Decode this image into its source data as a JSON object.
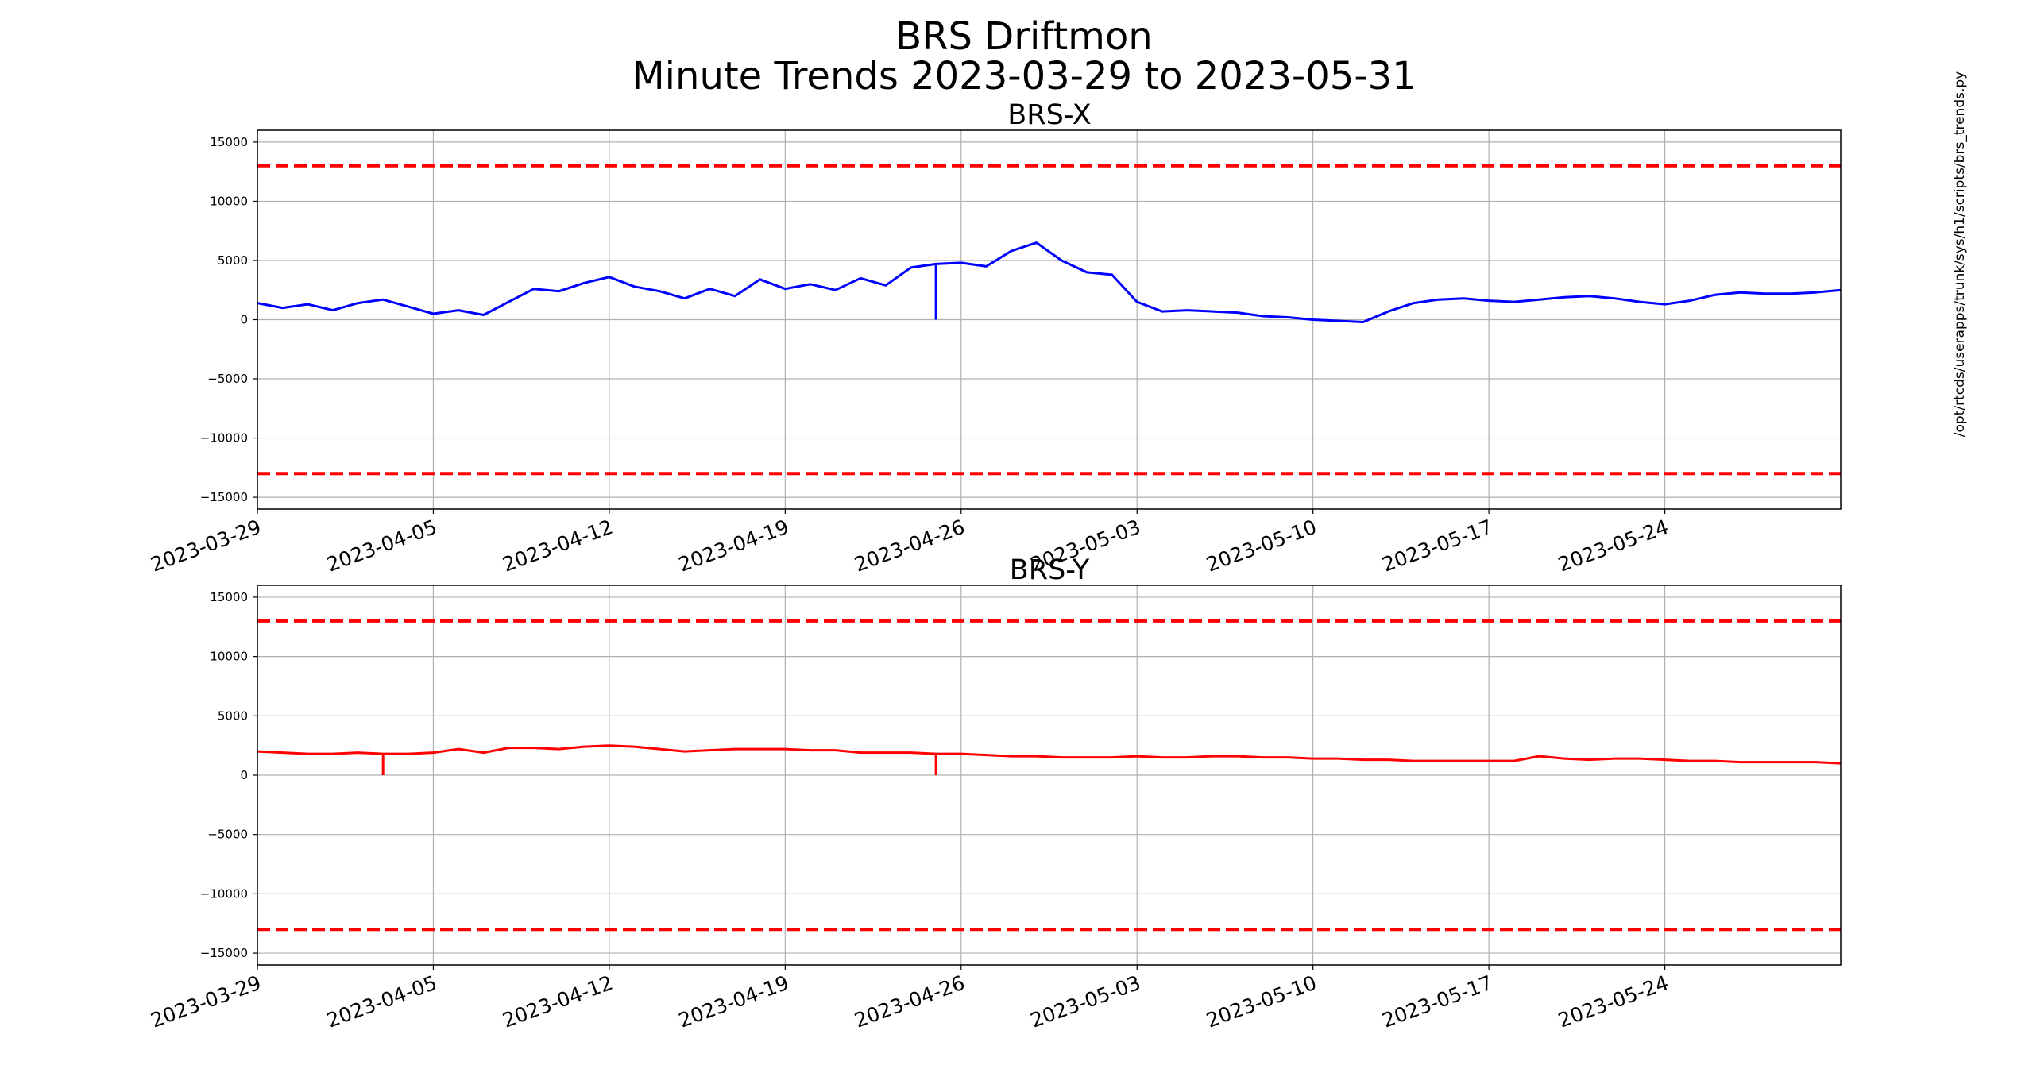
{
  "figure": {
    "title_lines": [
      "BRS Driftmon",
      "Minute Trends 2023-03-29  to 2023-05-31"
    ],
    "side_text": "/opt/rtcds/userapps/trunk/sys/h1/scripts/brs_trends.py"
  },
  "chart_data": [
    {
      "type": "line",
      "title": "BRS-X",
      "xlabel": "",
      "ylabel": "",
      "xlim": [
        "2023-03-29",
        "2023-05-31"
      ],
      "ylim": [
        -16000,
        16000
      ],
      "grid": true,
      "xticks": [
        "2023-03-29",
        "2023-04-05",
        "2023-04-12",
        "2023-04-19",
        "2023-04-26",
        "2023-05-03",
        "2023-05-10",
        "2023-05-17",
        "2023-05-24"
      ],
      "yticks": [
        -15000,
        -10000,
        -5000,
        0,
        5000,
        10000,
        15000
      ],
      "limit_lines": [
        {
          "y": 13000,
          "color": "#ff0000",
          "style": "dashed"
        },
        {
          "y": -13000,
          "color": "#ff0000",
          "style": "dashed"
        }
      ],
      "series": [
        {
          "color": "#0000ff",
          "x": [
            "2023-03-29",
            "2023-03-30",
            "2023-03-31",
            "2023-04-01",
            "2023-04-02",
            "2023-04-03",
            "2023-04-04",
            "2023-04-05",
            "2023-04-06",
            "2023-04-07",
            "2023-04-08",
            "2023-04-09",
            "2023-04-10",
            "2023-04-11",
            "2023-04-12",
            "2023-04-13",
            "2023-04-14",
            "2023-04-15",
            "2023-04-16",
            "2023-04-17",
            "2023-04-18",
            "2023-04-19",
            "2023-04-20",
            "2023-04-21",
            "2023-04-22",
            "2023-04-23",
            "2023-04-24",
            "2023-04-25",
            "2023-04-26",
            "2023-04-27",
            "2023-04-28",
            "2023-04-29",
            "2023-04-30",
            "2023-05-01",
            "2023-05-02",
            "2023-05-03",
            "2023-05-04",
            "2023-05-05",
            "2023-05-06",
            "2023-05-07",
            "2023-05-08",
            "2023-05-09",
            "2023-05-10",
            "2023-05-11",
            "2023-05-12",
            "2023-05-13",
            "2023-05-14",
            "2023-05-15",
            "2023-05-16",
            "2023-05-17",
            "2023-05-18",
            "2023-05-19",
            "2023-05-20",
            "2023-05-21",
            "2023-05-22",
            "2023-05-23",
            "2023-05-24",
            "2023-05-25",
            "2023-05-26",
            "2023-05-27",
            "2023-05-28",
            "2023-05-29",
            "2023-05-30",
            "2023-05-31"
          ],
          "values": [
            1400,
            1000,
            1300,
            800,
            1400,
            1700,
            1100,
            500,
            800,
            400,
            1500,
            2600,
            2400,
            3100,
            3600,
            2800,
            2400,
            1800,
            2600,
            2000,
            3400,
            2600,
            3000,
            2500,
            3500,
            2900,
            4400,
            4700,
            4800,
            4500,
            5800,
            6500,
            5000,
            4000,
            3800,
            1500,
            700,
            800,
            700,
            600,
            300,
            200,
            0,
            -100,
            -200,
            700,
            1400,
            1700,
            1800,
            1600,
            1500,
            1700,
            1900,
            2000,
            1800,
            1500,
            1300,
            1600,
            2100,
            2300,
            2200,
            2200,
            2300,
            2500
          ],
          "spikes": [
            {
              "x": "2023-04-25",
              "y": 0
            }
          ]
        }
      ]
    },
    {
      "type": "line",
      "title": "BRS-Y",
      "xlabel": "",
      "ylabel": "",
      "xlim": [
        "2023-03-29",
        "2023-05-31"
      ],
      "ylim": [
        -16000,
        16000
      ],
      "grid": true,
      "xticks": [
        "2023-03-29",
        "2023-04-05",
        "2023-04-12",
        "2023-04-19",
        "2023-04-26",
        "2023-05-03",
        "2023-05-10",
        "2023-05-17",
        "2023-05-24"
      ],
      "yticks": [
        -15000,
        -10000,
        -5000,
        0,
        5000,
        10000,
        15000
      ],
      "limit_lines": [
        {
          "y": 13000,
          "color": "#ff0000",
          "style": "dashed"
        },
        {
          "y": -13000,
          "color": "#ff0000",
          "style": "dashed"
        }
      ],
      "series": [
        {
          "color": "#ff0000",
          "x": [
            "2023-03-29",
            "2023-03-30",
            "2023-03-31",
            "2023-04-01",
            "2023-04-02",
            "2023-04-03",
            "2023-04-04",
            "2023-04-05",
            "2023-04-06",
            "2023-04-07",
            "2023-04-08",
            "2023-04-09",
            "2023-04-10",
            "2023-04-11",
            "2023-04-12",
            "2023-04-13",
            "2023-04-14",
            "2023-04-15",
            "2023-04-16",
            "2023-04-17",
            "2023-04-18",
            "2023-04-19",
            "2023-04-20",
            "2023-04-21",
            "2023-04-22",
            "2023-04-23",
            "2023-04-24",
            "2023-04-25",
            "2023-04-26",
            "2023-04-27",
            "2023-04-28",
            "2023-04-29",
            "2023-04-30",
            "2023-05-01",
            "2023-05-02",
            "2023-05-03",
            "2023-05-04",
            "2023-05-05",
            "2023-05-06",
            "2023-05-07",
            "2023-05-08",
            "2023-05-09",
            "2023-05-10",
            "2023-05-11",
            "2023-05-12",
            "2023-05-13",
            "2023-05-14",
            "2023-05-15",
            "2023-05-16",
            "2023-05-17",
            "2023-05-18",
            "2023-05-19",
            "2023-05-20",
            "2023-05-21",
            "2023-05-22",
            "2023-05-23",
            "2023-05-24",
            "2023-05-25",
            "2023-05-26",
            "2023-05-27",
            "2023-05-28",
            "2023-05-29",
            "2023-05-30",
            "2023-05-31"
          ],
          "values": [
            2000,
            1900,
            1800,
            1800,
            1900,
            1800,
            1800,
            1900,
            2200,
            1900,
            2300,
            2300,
            2200,
            2400,
            2500,
            2400,
            2200,
            2000,
            2100,
            2200,
            2200,
            2200,
            2100,
            2100,
            1900,
            1900,
            1900,
            1800,
            1800,
            1700,
            1600,
            1600,
            1500,
            1500,
            1500,
            1600,
            1500,
            1500,
            1600,
            1600,
            1500,
            1500,
            1400,
            1400,
            1300,
            1300,
            1200,
            1200,
            1200,
            1200,
            1200,
            1600,
            1400,
            1300,
            1400,
            1400,
            1300,
            1200,
            1200,
            1100,
            1100,
            1100,
            1100,
            1000
          ],
          "spikes": [
            {
              "x": "2023-04-03",
              "y": 0
            },
            {
              "x": "2023-04-25",
              "y": 0
            }
          ]
        }
      ]
    }
  ]
}
